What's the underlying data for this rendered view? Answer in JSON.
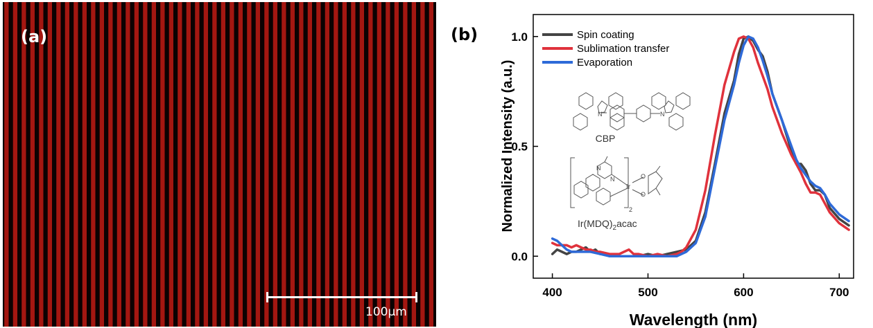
{
  "panel_a": {
    "label": "(a)",
    "scale_bar_label": "100μm",
    "stripe_count": 50,
    "stripe_color": "#c01b14",
    "background_color": "#0b0202"
  },
  "panel_b": {
    "label": "(b)"
  },
  "molecules": {
    "cbp_label": "CBP",
    "ir_label_main": "Ir(MDQ)",
    "ir_label_sub": "2",
    "ir_label_tail": "acac",
    "bracket_sub": "2",
    "atom_n": "N",
    "atom_ir": "Ir",
    "atom_o": "O"
  },
  "chart_data": {
    "type": "line",
    "xlabel": "Wavelength (nm)",
    "ylabel": "Normalized Intensity (a.u.)",
    "xlim": [
      380,
      715
    ],
    "ylim": [
      -0.1,
      1.1
    ],
    "xticks": [
      400,
      500,
      600,
      700
    ],
    "yticks": [
      0.0,
      0.5,
      1.0
    ],
    "ytick_labels": [
      "0.0",
      "0.5",
      "1.0"
    ],
    "legend_position": "top-left",
    "series": [
      {
        "name": "Spin coating",
        "color": "#444444",
        "x": [
          400,
          405,
          410,
          415,
          420,
          425,
          430,
          435,
          440,
          445,
          450,
          455,
          460,
          470,
          480,
          490,
          500,
          510,
          520,
          530,
          540,
          550,
          560,
          570,
          580,
          590,
          595,
          600,
          605,
          610,
          615,
          620,
          625,
          630,
          640,
          650,
          655,
          660,
          665,
          670,
          675,
          680,
          685,
          690,
          700,
          710
        ],
        "y": [
          0.01,
          0.03,
          0.02,
          0.01,
          0.02,
          0.02,
          0.03,
          0.04,
          0.02,
          0.03,
          0.01,
          0.01,
          0.0,
          0.0,
          0.0,
          0.0,
          0.01,
          0.0,
          0.01,
          0.02,
          0.03,
          0.07,
          0.2,
          0.42,
          0.65,
          0.8,
          0.92,
          0.99,
          1.0,
          0.98,
          0.94,
          0.91,
          0.84,
          0.74,
          0.62,
          0.48,
          0.42,
          0.42,
          0.39,
          0.33,
          0.3,
          0.3,
          0.28,
          0.22,
          0.17,
          0.14
        ]
      },
      {
        "name": "Sublimation transfer",
        "color": "#e0323c",
        "x": [
          400,
          405,
          410,
          415,
          420,
          425,
          430,
          435,
          440,
          445,
          450,
          460,
          470,
          475,
          480,
          485,
          490,
          500,
          510,
          520,
          530,
          535,
          540,
          550,
          560,
          570,
          580,
          590,
          595,
          600,
          605,
          610,
          615,
          620,
          625,
          630,
          640,
          650,
          655,
          660,
          665,
          670,
          675,
          680,
          685,
          690,
          700,
          710
        ],
        "y": [
          0.06,
          0.05,
          0.05,
          0.05,
          0.04,
          0.05,
          0.04,
          0.03,
          0.03,
          0.02,
          0.02,
          0.01,
          0.01,
          0.02,
          0.03,
          0.01,
          0.01,
          0.0,
          0.01,
          0.0,
          0.01,
          0.02,
          0.04,
          0.12,
          0.3,
          0.55,
          0.78,
          0.93,
          0.99,
          1.0,
          0.99,
          0.95,
          0.88,
          0.82,
          0.76,
          0.68,
          0.56,
          0.46,
          0.42,
          0.38,
          0.33,
          0.29,
          0.29,
          0.28,
          0.24,
          0.2,
          0.15,
          0.12
        ]
      },
      {
        "name": "Evaporation",
        "color": "#2e6ad8",
        "x": [
          400,
          405,
          410,
          415,
          420,
          425,
          430,
          440,
          450,
          460,
          470,
          480,
          490,
          500,
          510,
          520,
          530,
          540,
          550,
          560,
          570,
          580,
          590,
          595,
          600,
          605,
          610,
          615,
          620,
          625,
          630,
          640,
          650,
          655,
          660,
          665,
          670,
          675,
          680,
          685,
          690,
          700,
          710
        ],
        "y": [
          0.08,
          0.07,
          0.05,
          0.03,
          0.02,
          0.02,
          0.02,
          0.02,
          0.01,
          0.0,
          0.0,
          0.0,
          0.0,
          0.0,
          0.0,
          0.0,
          0.0,
          0.02,
          0.06,
          0.18,
          0.4,
          0.62,
          0.78,
          0.88,
          0.96,
          1.0,
          0.99,
          0.95,
          0.89,
          0.82,
          0.74,
          0.62,
          0.5,
          0.44,
          0.4,
          0.37,
          0.34,
          0.32,
          0.31,
          0.28,
          0.24,
          0.19,
          0.16
        ]
      }
    ]
  }
}
